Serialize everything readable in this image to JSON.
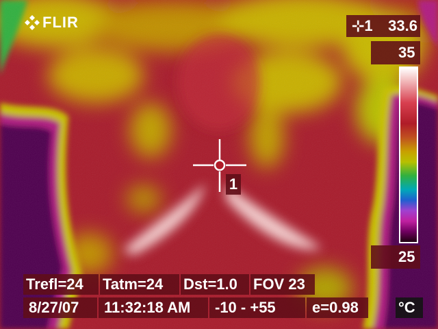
{
  "brand": {
    "logo_text": "FLIR",
    "logo_icon": "flir-logo-icon"
  },
  "spot": {
    "label": "⊹1",
    "value": "33.6",
    "tag": "1"
  },
  "scale": {
    "max": "35",
    "min": "25",
    "unit": "°C"
  },
  "params": {
    "trefl": "Trefl=24",
    "tatm": "Tatm=24",
    "dst": "Dst=1.0",
    "fov": "FOV 23"
  },
  "status": {
    "date": "8/27/07",
    "time": "11:32:18 AM",
    "range": "-10 -  +55",
    "emissivity": "e=0.98"
  },
  "palette": {
    "hot": "#ffffff",
    "warm": "#b01c28",
    "mid": "#c8a000",
    "cool": "#30b040",
    "cold": "#200010"
  }
}
